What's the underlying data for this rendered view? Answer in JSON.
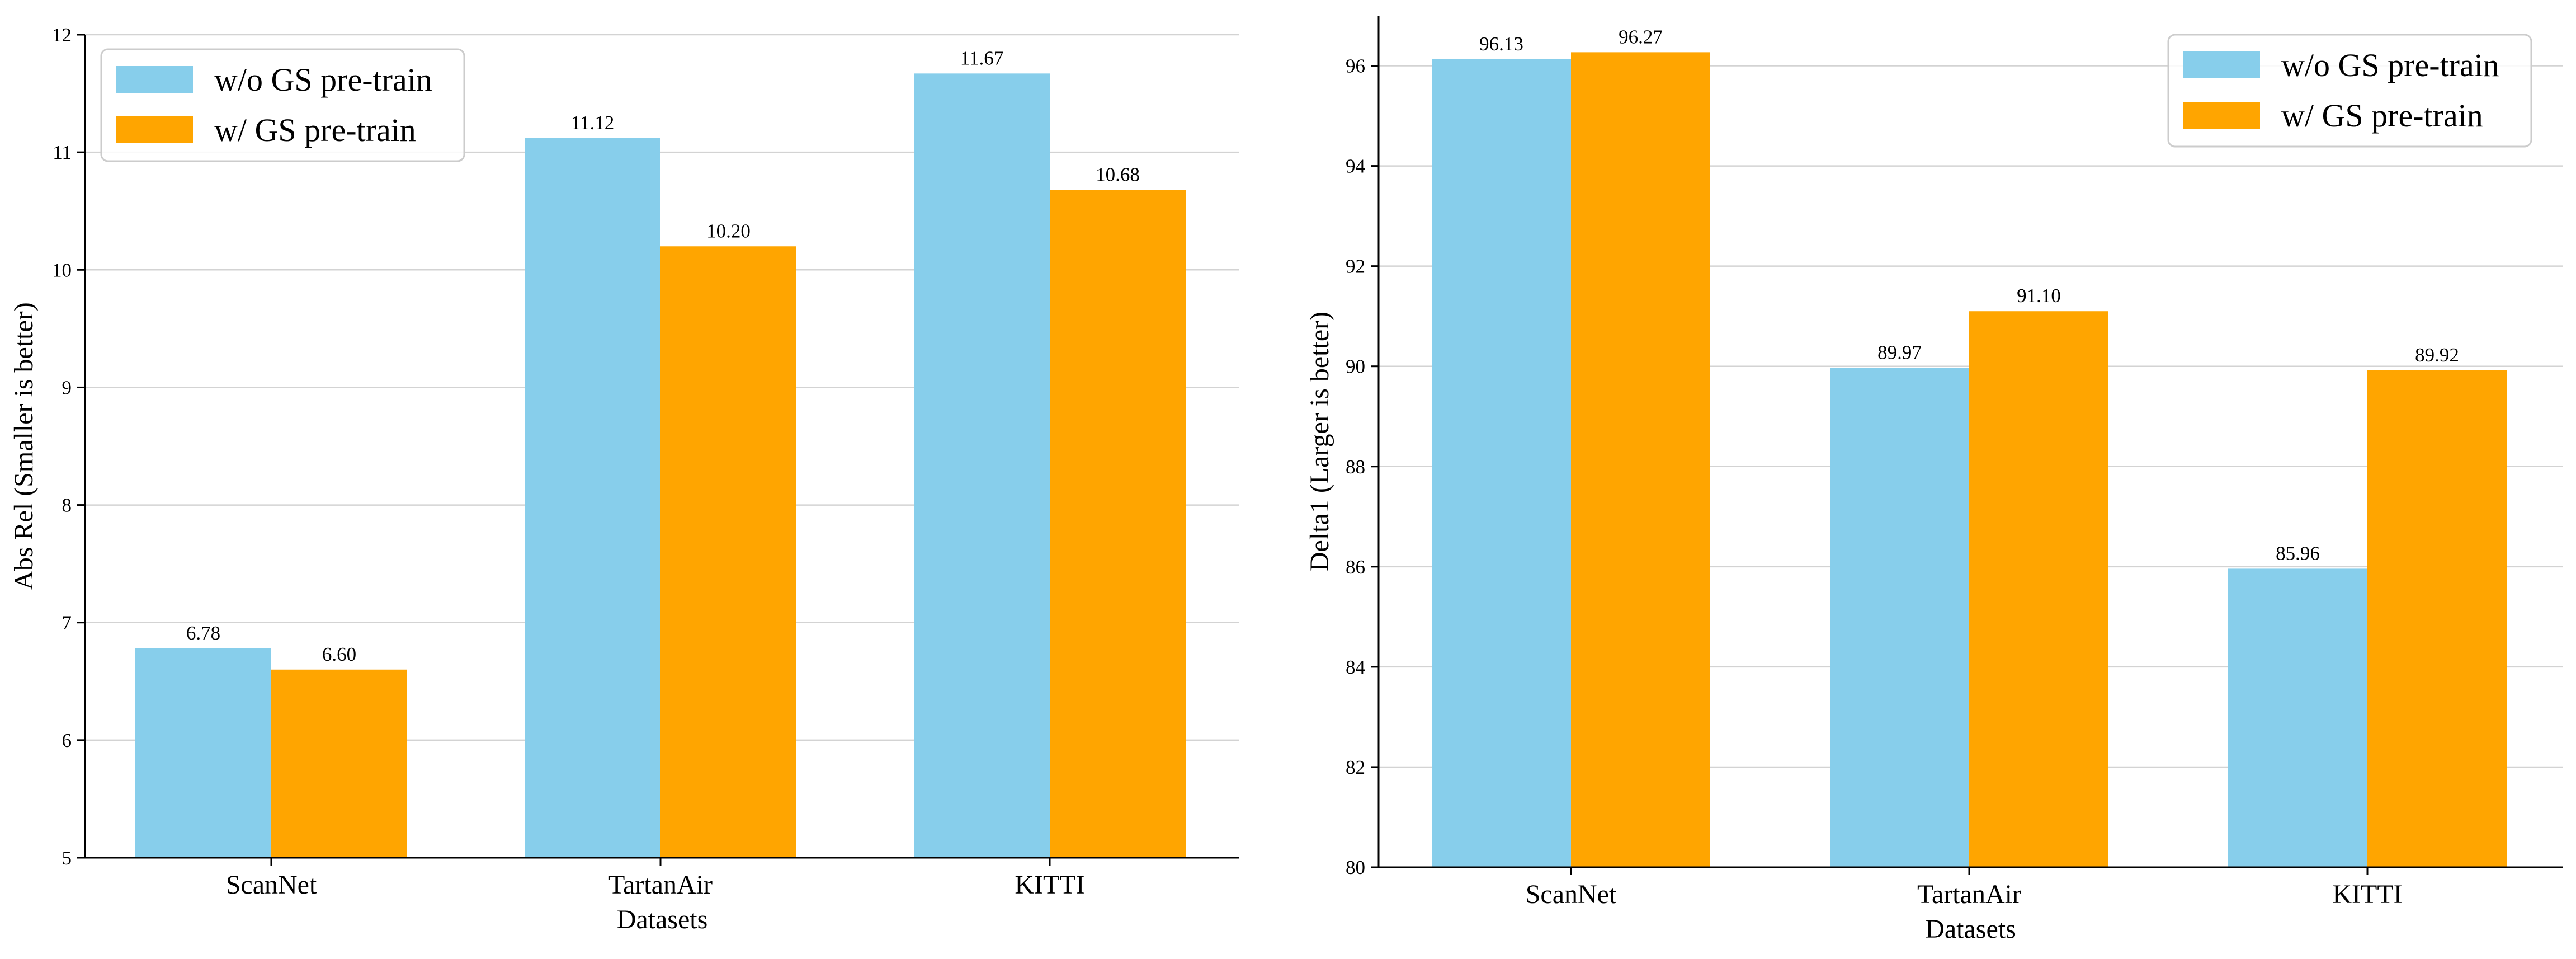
{
  "colors": {
    "without_gs": "#87ceeb",
    "with_gs": "#ffa500",
    "grid": "#d3d3d3",
    "axis": "#000000"
  },
  "chart_data": [
    {
      "type": "bar",
      "xlabel": "Datasets",
      "ylabel": "Abs Rel (Smaller is better)",
      "categories": [
        "ScanNet",
        "TartanAir",
        "KITTI"
      ],
      "series": [
        {
          "name": "w/o GS pre-train",
          "values": [
            6.78,
            11.12,
            11.67
          ],
          "labels": [
            "6.78",
            "11.12",
            "11.67"
          ]
        },
        {
          "name": "w/ GS pre-train",
          "values": [
            6.6,
            10.2,
            10.68
          ],
          "labels": [
            "6.60",
            "10.20",
            "10.68"
          ]
        }
      ],
      "ylim": [
        5,
        12
      ],
      "yticks": [
        "5",
        "6",
        "7",
        "8",
        "9",
        "10",
        "11",
        "12"
      ],
      "grid": "horizontal",
      "legend": "top-left"
    },
    {
      "type": "bar",
      "xlabel": "Datasets",
      "ylabel": "Delta1 (Larger is better)",
      "categories": [
        "ScanNet",
        "TartanAir",
        "KITTI"
      ],
      "series": [
        {
          "name": "w/o GS pre-train",
          "values": [
            96.13,
            89.97,
            85.96
          ],
          "labels": [
            "96.13",
            "89.97",
            "85.96"
          ]
        },
        {
          "name": "w/ GS pre-train",
          "values": [
            96.27,
            91.1,
            89.92
          ],
          "labels": [
            "96.27",
            "91.10",
            "89.92"
          ]
        }
      ],
      "ylim": [
        80,
        97
      ],
      "yticks": [
        "80",
        "82",
        "84",
        "86",
        "88",
        "90",
        "92",
        "94",
        "96"
      ],
      "grid": "horizontal",
      "legend": "top-right"
    }
  ]
}
